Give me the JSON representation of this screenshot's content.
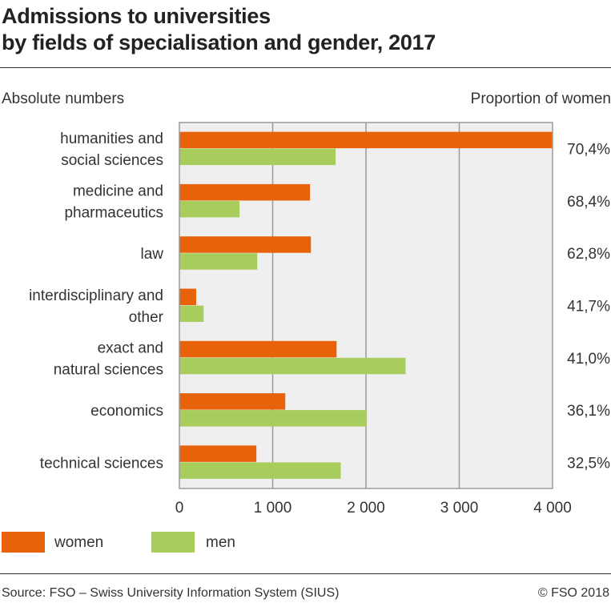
{
  "title_line1": "Admissions to universities",
  "title_line2": "by fields of specialisation and gender, 2017",
  "left_caption": "Absolute numbers",
  "right_caption": "Proportion of women",
  "source": "Source: FSO – Swiss University Information System (SIUS)",
  "copyright": "© FSO 2018",
  "chart_data": {
    "type": "bar",
    "orientation": "horizontal",
    "categories": [
      [
        "humanities and",
        "social sciences"
      ],
      [
        "medicine and",
        "pharmaceutics"
      ],
      [
        "law"
      ],
      [
        "interdisciplinary and",
        "other"
      ],
      [
        "exact and",
        "natural sciences"
      ],
      [
        "economics"
      ],
      [
        "technical sciences"
      ]
    ],
    "series": [
      {
        "name": "women",
        "color": "#e8620a",
        "values": [
          3995,
          1400,
          1410,
          180,
          1685,
          1135,
          825
        ]
      },
      {
        "name": "men",
        "color": "#a9cd5d",
        "values": [
          1675,
          645,
          835,
          260,
          2425,
          2010,
          1730
        ]
      }
    ],
    "proportion_of_women": [
      "70,4%",
      "68,4%",
      "62,8%",
      "41,7%",
      "41,0%",
      "36,1%",
      "32,5%"
    ],
    "xlim": [
      0,
      4000
    ],
    "xticks": [
      0,
      1000,
      2000,
      3000,
      4000
    ],
    "xtick_labels": [
      "0",
      "1 000",
      "2 000",
      "3 000",
      "4 000"
    ],
    "grid": true,
    "legend": "bottom-left"
  }
}
